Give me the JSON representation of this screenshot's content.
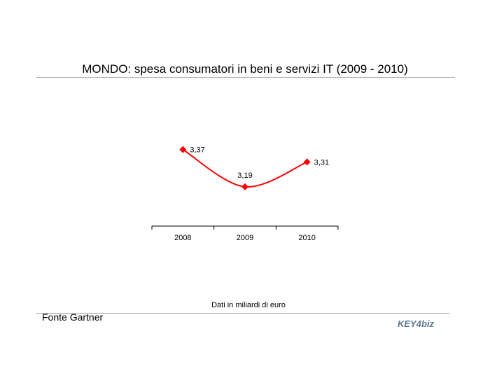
{
  "title": "MONDO: spesa consumatori in beni e servizi IT (2009 - 2010)",
  "note": "Dati in miliardi di euro",
  "source": "Fonte Gartner",
  "logo_text": "KEY4biz",
  "chart_data": {
    "type": "line",
    "categories": [
      "2008",
      "2009",
      "2010"
    ],
    "series": [
      {
        "values": [
          3.37,
          3.19,
          3.31
        ],
        "labels": [
          "3,37",
          "3,19",
          "3,31"
        ],
        "color": "#ff0000"
      }
    ],
    "ylim": [
      3.0,
      3.45
    ],
    "xlabel": "",
    "ylabel": "",
    "grid": false,
    "legend": "none"
  }
}
